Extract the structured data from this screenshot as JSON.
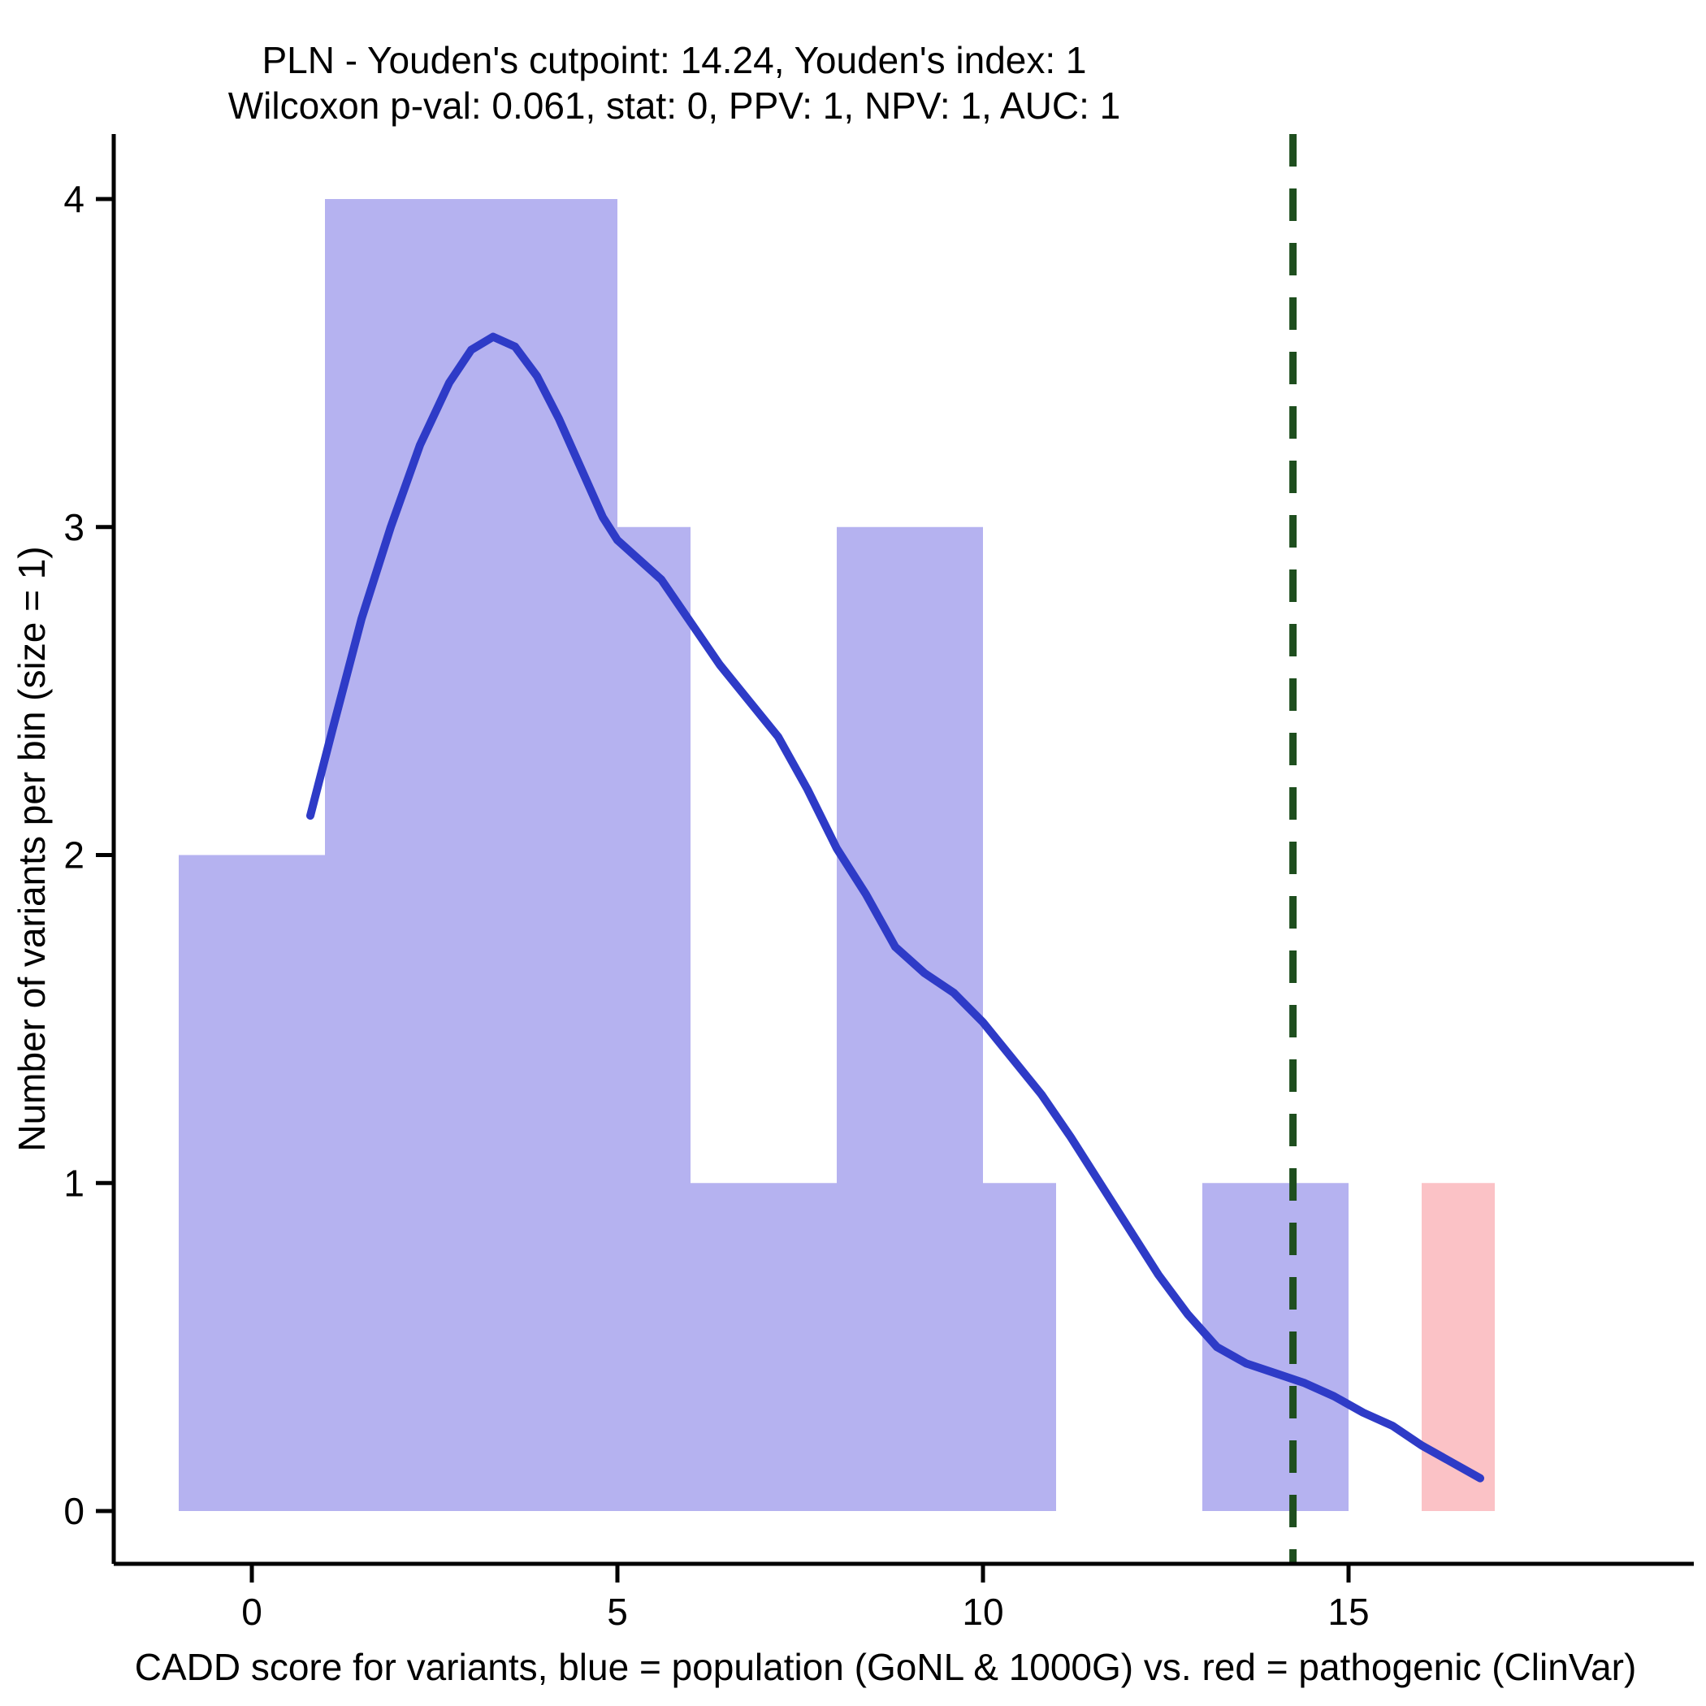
{
  "title": {
    "line1": "PLN - Youden's cutpoint: 14.24, Youden's index: 1",
    "line2": "Wilcoxon p-val: 0.061, stat: 0, PPV: 1, NPV: 1, AUC: 1"
  },
  "chart_data": {
    "type": "bar",
    "subtype": "histogram-with-density-overlay",
    "title": "PLN - Youden's cutpoint: 14.24, Youden's index: 1",
    "subtitle": "Wilcoxon p-val: 0.061, stat: 0, PPV: 1, NPV: 1, AUC: 1",
    "xlabel": "CADD score for variants, blue = population (GoNL & 1000G) vs. red = pathogenic (ClinVar)",
    "ylabel": "Number of variants per bin (size = 1)",
    "stats": {
      "gene": "PLN",
      "youdens_cutpoint": 14.24,
      "youdens_index": 1,
      "wilcoxon_p_val": 0.061,
      "stat": 0,
      "ppv": 1,
      "npv": 1,
      "auc": 1
    },
    "xlim": [
      -1.9,
      19.7
    ],
    "ylim": [
      0,
      4.3
    ],
    "x_ticks": [
      0,
      5,
      10,
      15
    ],
    "y_ticks": [
      0,
      1,
      2,
      3,
      4
    ],
    "bin_size": 1,
    "grid": false,
    "legend_position": "none",
    "series": [
      {
        "name": "population (GoNL & 1000G)",
        "color": "#b5b2f0",
        "segments": [
          {
            "from": -1,
            "to": 1,
            "count": 2
          },
          {
            "from": 1,
            "to": 5,
            "count": 4
          },
          {
            "from": 5,
            "to": 6,
            "count": 3
          },
          {
            "from": 6,
            "to": 8,
            "count": 1
          },
          {
            "from": 8,
            "to": 10,
            "count": 3
          },
          {
            "from": 10,
            "to": 11,
            "count": 1
          },
          {
            "from": 13,
            "to": 15,
            "count": 1
          }
        ]
      },
      {
        "name": "pathogenic (ClinVar)",
        "color": "#fbc2c6",
        "segments": [
          {
            "from": 16,
            "to": 17,
            "count": 1
          }
        ]
      }
    ],
    "density_line": {
      "name": "density-curve",
      "color": "#2e3bc7",
      "points": [
        [
          0.8,
          2.12
        ],
        [
          1.1,
          2.38
        ],
        [
          1.5,
          2.72
        ],
        [
          1.9,
          3.0
        ],
        [
          2.3,
          3.25
        ],
        [
          2.7,
          3.44
        ],
        [
          3.0,
          3.54
        ],
        [
          3.3,
          3.58
        ],
        [
          3.6,
          3.55
        ],
        [
          3.9,
          3.46
        ],
        [
          4.2,
          3.33
        ],
        [
          4.5,
          3.18
        ],
        [
          4.8,
          3.03
        ],
        [
          5.0,
          2.96
        ],
        [
          5.3,
          2.9
        ],
        [
          5.6,
          2.84
        ],
        [
          6.0,
          2.71
        ],
        [
          6.4,
          2.58
        ],
        [
          6.8,
          2.47
        ],
        [
          7.2,
          2.36
        ],
        [
          7.6,
          2.2
        ],
        [
          8.0,
          2.02
        ],
        [
          8.4,
          1.88
        ],
        [
          8.8,
          1.72
        ],
        [
          9.2,
          1.64
        ],
        [
          9.6,
          1.58
        ],
        [
          10.0,
          1.49
        ],
        [
          10.4,
          1.38
        ],
        [
          10.8,
          1.27
        ],
        [
          11.2,
          1.14
        ],
        [
          11.6,
          1.0
        ],
        [
          12.0,
          0.86
        ],
        [
          12.4,
          0.72
        ],
        [
          12.8,
          0.6
        ],
        [
          13.2,
          0.5
        ],
        [
          13.6,
          0.45
        ],
        [
          14.0,
          0.42
        ],
        [
          14.4,
          0.39
        ],
        [
          14.8,
          0.35
        ],
        [
          15.2,
          0.3
        ],
        [
          15.6,
          0.26
        ],
        [
          16.0,
          0.2
        ],
        [
          16.4,
          0.15
        ],
        [
          16.8,
          0.1
        ]
      ]
    },
    "cutpoint_line": {
      "x": 14.24,
      "color": "#1e4e1e",
      "style": "dashed"
    },
    "axis_color": "#000000"
  }
}
